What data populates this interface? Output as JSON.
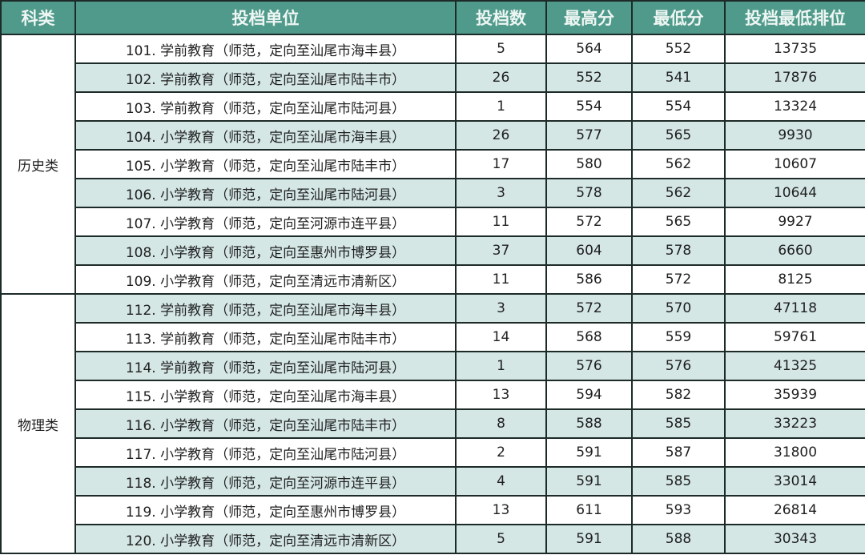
{
  "table": {
    "headers": [
      "科类",
      "投档单位",
      "投档数",
      "最高分",
      "最低分",
      "投档最低排位"
    ],
    "groups": [
      {
        "category": "历史类",
        "rows": [
          [
            "101. 学前教育（师范，定向至汕尾市海丰县）",
            "5",
            "564",
            "552",
            "13735"
          ],
          [
            "102. 学前教育（师范，定向至汕尾市陆丰市）",
            "26",
            "552",
            "541",
            "17876"
          ],
          [
            "103. 学前教育（师范，定向至汕尾市陆河县）",
            "1",
            "554",
            "554",
            "13324"
          ],
          [
            "104. 小学教育（师范，定向至汕尾市海丰县）",
            "26",
            "577",
            "565",
            "9930"
          ],
          [
            "105. 小学教育（师范，定向至汕尾市陆丰市）",
            "17",
            "580",
            "562",
            "10607"
          ],
          [
            "106. 小学教育（师范，定向至汕尾市陆河县）",
            "3",
            "578",
            "562",
            "10644"
          ],
          [
            "107. 小学教育（师范，定向至河源市连平县）",
            "11",
            "572",
            "565",
            "9927"
          ],
          [
            "108. 小学教育（师范，定向至惠州市博罗县）",
            "37",
            "604",
            "578",
            "6660"
          ],
          [
            "109. 小学教育（师范，定向至清远市清新区）",
            "11",
            "586",
            "572",
            "8125"
          ]
        ]
      },
      {
        "category": "物理类",
        "rows": [
          [
            "112. 学前教育（师范，定向至汕尾市海丰县）",
            "3",
            "572",
            "570",
            "47118"
          ],
          [
            "113. 学前教育（师范，定向至汕尾市陆丰市）",
            "14",
            "568",
            "559",
            "59761"
          ],
          [
            "114. 学前教育（师范，定向至汕尾市陆河县）",
            "1",
            "576",
            "576",
            "41325"
          ],
          [
            "115. 小学教育（师范，定向至汕尾市海丰县）",
            "13",
            "594",
            "582",
            "35939"
          ],
          [
            "116. 小学教育（师范，定向至汕尾市陆丰市）",
            "8",
            "588",
            "585",
            "33223"
          ],
          [
            "117. 小学教育（师范，定向至汕尾市陆河县）",
            "2",
            "591",
            "587",
            "31800"
          ],
          [
            "118. 小学教育（师范，定向至河源市连平县）",
            "4",
            "591",
            "585",
            "33014"
          ],
          [
            "119. 小学教育（师范，定向至惠州市博罗县）",
            "13",
            "611",
            "593",
            "26814"
          ],
          [
            "120. 小学教育（师范，定向至清远市清新区）",
            "5",
            "591",
            "588",
            "30343"
          ]
        ]
      }
    ]
  },
  "colors": {
    "header": "#4f9a8b",
    "stripe": "#d4e7e5",
    "border": "#1d2b28"
  }
}
